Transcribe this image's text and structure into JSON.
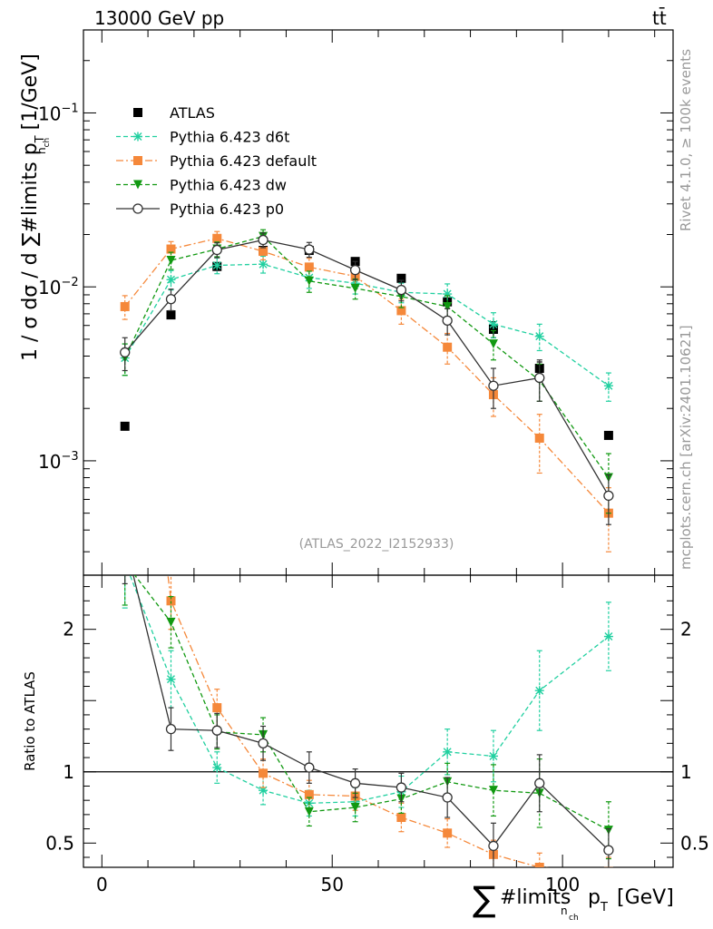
{
  "header": {
    "left": "13000 GeV pp",
    "right": "tt̄"
  },
  "side": {
    "rivet": "Rivet 4.1.0, ≥ 100k events",
    "mcplots": "mcplots.cern.ch [arXiv:2401.10621]"
  },
  "analysis_id": "(ATLAS_2022_I2152933)",
  "axes": {
    "ylabel_main": "1 / σ dσ / d ∑#limits p",
    "ylabel_main_sub1": "n",
    "ylabel_main_sub2": "ch",
    "ylabel_main_subT": "T",
    "ylabel_main_unit": "[1/GeV]",
    "ylabel_ratio": "Ratio to ATLAS",
    "xlabel_sigma": "∑",
    "xlabel_text": "#limits",
    "xlabel_sub1": "n",
    "xlabel_sub2": "ch",
    "xlabel_p": "p",
    "xlabel_T": "T",
    "xlabel_unit": "[GeV]",
    "main_ticks": [
      {
        "base": "10",
        "exp": "−1",
        "value": 0.1
      },
      {
        "base": "10",
        "exp": "−2",
        "value": 0.01
      },
      {
        "base": "10",
        "exp": "−3",
        "value": 0.001
      }
    ],
    "ratio_ticks": [
      {
        "label": "2",
        "value": 2
      },
      {
        "label": "1",
        "value": 1
      },
      {
        "label": "0.5",
        "value": 0.5
      }
    ],
    "x_ticks": [
      {
        "label": "0",
        "value": 0
      },
      {
        "label": "50",
        "value": 50
      },
      {
        "label": "100",
        "value": 100
      }
    ]
  },
  "chart_data": {
    "type": "scatter",
    "title": "13000 GeV pp, tt̄",
    "xlabel": "∑#limits_nch pT [GeV]",
    "ylabel": "1 / σ dσ / d ∑#limits_nch pT [1/GeV]",
    "xlim": [
      -4,
      124
    ],
    "ylim": [
      0.00022,
      0.3
    ],
    "ratio_ylim": [
      0.33,
      2.38
    ],
    "yscale": "log",
    "x": [
      5,
      15,
      25,
      35,
      45,
      55,
      65,
      75,
      85,
      95,
      110
    ],
    "series": [
      {
        "name": "ATLAS",
        "color": "#000000",
        "marker": "square",
        "line": "none",
        "values": [
          0.00158,
          0.0069,
          0.0131,
          0.0162,
          0.0162,
          0.014,
          0.0112,
          0.0082,
          0.0057,
          0.0034,
          0.0014
        ],
        "ratio": [
          1,
          1,
          1,
          1,
          1,
          1,
          1,
          1,
          1,
          1,
          1
        ],
        "errors": [
          0,
          0,
          0,
          0,
          0,
          0,
          0,
          0.0007,
          0.0006,
          0.0003,
          0
        ]
      },
      {
        "name": "Pythia 6.423 d6t",
        "color": "#21d0a0",
        "marker": "star",
        "line": "dashed",
        "values": [
          0.0039,
          0.011,
          0.0133,
          0.0135,
          0.0113,
          0.0105,
          0.0093,
          0.0091,
          0.0061,
          0.0052,
          0.0027
        ],
        "errors": [
          0.0008,
          0.0014,
          0.0014,
          0.0015,
          0.0015,
          0.0014,
          0.0012,
          0.0013,
          0.001,
          0.0009,
          0.0005
        ],
        "ratio": [
          2.47,
          1.65,
          1.03,
          0.87,
          0.78,
          0.79,
          0.86,
          1.14,
          1.11,
          1.57,
          1.95
        ],
        "ratio_err": [
          0.32,
          0.2,
          0.11,
          0.1,
          0.09,
          0.1,
          0.11,
          0.16,
          0.18,
          0.28,
          0.24
        ]
      },
      {
        "name": "Pythia 6.423 default",
        "color": "#f5883a",
        "marker": "square",
        "line": "dashdot",
        "values": [
          0.0077,
          0.0165,
          0.019,
          0.016,
          0.013,
          0.0115,
          0.0073,
          0.0045,
          0.0024,
          0.00135,
          0.0005
        ],
        "errors": [
          0.0012,
          0.0017,
          0.0018,
          0.0017,
          0.0016,
          0.0015,
          0.0012,
          0.0009,
          0.0006,
          0.0005,
          0.0002
        ],
        "ratio": [
          4.9,
          2.2,
          1.45,
          0.99,
          0.84,
          0.83,
          0.68,
          0.57,
          0.42,
          0.33,
          0.3
        ],
        "ratio_err": [
          0.5,
          0.2,
          0.13,
          0.1,
          0.1,
          0.1,
          0.1,
          0.1,
          0.1,
          0.1,
          0.1
        ]
      },
      {
        "name": "Pythia 6.423 dw",
        "color": "#119911",
        "marker": "triangle-down",
        "line": "dashed",
        "values": [
          0.0039,
          0.0142,
          0.0165,
          0.0195,
          0.0108,
          0.0098,
          0.0088,
          0.0077,
          0.0047,
          0.0029,
          0.0008
        ],
        "errors": [
          0.0008,
          0.0016,
          0.0016,
          0.0018,
          0.0015,
          0.0013,
          0.0012,
          0.0012,
          0.0009,
          0.0007,
          0.0003
        ],
        "ratio": [
          2.47,
          2.05,
          1.28,
          1.26,
          0.72,
          0.75,
          0.81,
          0.93,
          0.87,
          0.85,
          0.59
        ],
        "ratio_err": [
          0.3,
          0.18,
          0.12,
          0.12,
          0.1,
          0.1,
          0.1,
          0.13,
          0.18,
          0.24,
          0.2
        ]
      },
      {
        "name": "Pythia 6.423 p0",
        "color": "#333333",
        "marker": "open-circle",
        "line": "solid",
        "values": [
          0.0042,
          0.0085,
          0.0163,
          0.0186,
          0.0164,
          0.0125,
          0.0096,
          0.0064,
          0.0027,
          0.003,
          0.00063
        ],
        "errors": [
          0.0009,
          0.0012,
          0.0016,
          0.0018,
          0.0016,
          0.0015,
          0.0013,
          0.0011,
          0.0007,
          0.0008,
          0.0002
        ],
        "ratio": [
          2.62,
          1.3,
          1.29,
          1.2,
          1.03,
          0.92,
          0.89,
          0.82,
          0.48,
          0.92,
          0.45
        ],
        "ratio_err": [
          0.3,
          0.15,
          0.12,
          0.12,
          0.11,
          0.1,
          0.1,
          0.14,
          0.16,
          0.2,
          0.15
        ]
      }
    ]
  }
}
